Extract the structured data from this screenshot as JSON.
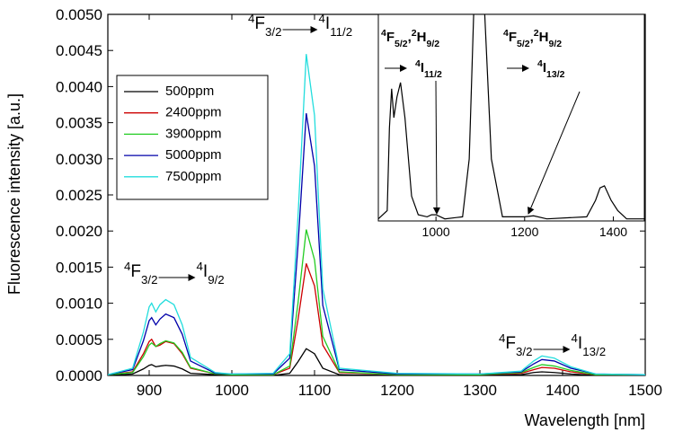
{
  "chart_data": {
    "type": "line",
    "xlabel": "Wavelength [nm]",
    "ylabel": "Fluorescence intensity [a.u.]",
    "xlim": [
      850,
      1500
    ],
    "xticks": [
      900,
      1000,
      1100,
      1200,
      1300,
      1400,
      1500
    ],
    "ylim": [
      0,
      0.005
    ],
    "yticks": [
      {
        "value": 0,
        "label": "0.0000"
      },
      {
        "value": 0.0005,
        "label": "0.0005"
      },
      {
        "value": 0.001,
        "label": "0.0010"
      },
      {
        "value": 0.0015,
        "label": "0.0015"
      },
      {
        "value": 0.002,
        "label": "0.0020"
      },
      {
        "value": 0.0025,
        "label": "0.0025"
      },
      {
        "value": 0.003,
        "label": "0.0030"
      },
      {
        "value": 0.0035,
        "label": "0.0035"
      },
      {
        "value": 0.004,
        "label": "0.0040"
      },
      {
        "value": 0.0045,
        "label": "0.0045"
      },
      {
        "value": 0.005,
        "label": "0.0050"
      }
    ],
    "legend": "upper left",
    "x": [
      850,
      880,
      893,
      900,
      903,
      908,
      913,
      920,
      930,
      940,
      950,
      980,
      1000,
      1050,
      1070,
      1080,
      1090,
      1100,
      1110,
      1130,
      1200,
      1300,
      1350,
      1365,
      1375,
      1390,
      1410,
      1440,
      1500
    ],
    "series": [
      {
        "name": "500ppm",
        "color": "#000000",
        "values": [
          0,
          2e-05,
          9e-05,
          0.00014,
          0.00015,
          0.00012,
          0.00013,
          0.00014,
          0.00013,
          9e-05,
          3e-05,
          1e-05,
          0,
          0,
          3e-05,
          0.00019,
          0.00037,
          0.0003,
          0.0001,
          1e-05,
          0,
          0,
          1e-05,
          4e-05,
          5e-05,
          4e-05,
          2e-05,
          0,
          0
        ]
      },
      {
        "name": "2400ppm",
        "color": "#cc0000",
        "values": [
          1e-05,
          5e-05,
          0.0003,
          0.00047,
          0.0005,
          0.0004,
          0.00042,
          0.00047,
          0.00044,
          0.0003,
          0.0001,
          2e-05,
          1e-05,
          1e-05,
          0.0001,
          0.00077,
          0.00155,
          0.00124,
          0.00042,
          4e-05,
          1e-05,
          1e-05,
          3e-05,
          8e-05,
          0.00011,
          0.0001,
          5e-05,
          1e-05,
          1e-05
        ]
      },
      {
        "name": "3900ppm",
        "color": "#22cc22",
        "values": [
          1e-05,
          4e-05,
          0.00026,
          0.00042,
          0.00045,
          0.0004,
          0.00044,
          0.00048,
          0.00045,
          0.00032,
          0.00011,
          2e-05,
          1e-05,
          1e-05,
          0.00013,
          0.001,
          0.00202,
          0.0016,
          0.00054,
          5e-05,
          1e-05,
          1e-05,
          4e-05,
          0.00011,
          0.00015,
          0.00013,
          7e-05,
          1e-05,
          1e-05
        ]
      },
      {
        "name": "5000ppm",
        "color": "#0000aa",
        "values": [
          1e-05,
          8e-05,
          0.00048,
          0.00076,
          0.0008,
          0.0007,
          0.00078,
          0.00085,
          0.0008,
          0.00057,
          0.0002,
          3e-05,
          2e-05,
          2e-05,
          0.00024,
          0.0018,
          0.00363,
          0.0029,
          0.00097,
          8e-05,
          2e-05,
          2e-05,
          5e-05,
          0.00016,
          0.00022,
          0.0002,
          0.0001,
          2e-05,
          1e-05
        ]
      },
      {
        "name": "7500ppm",
        "color": "#22dddd",
        "values": [
          1e-05,
          0.0001,
          0.0006,
          0.00095,
          0.001,
          0.00088,
          0.00098,
          0.00105,
          0.00098,
          0.0007,
          0.00025,
          4e-05,
          2e-05,
          3e-05,
          0.0003,
          0.0022,
          0.00445,
          0.0036,
          0.0012,
          0.0001,
          3e-05,
          2e-05,
          6e-05,
          0.0002,
          0.00027,
          0.00024,
          0.00012,
          2e-05,
          1e-05
        ]
      }
    ],
    "annotations": [
      {
        "from": [
          {
            "sup": "4",
            "sym": "F",
            "sub": "3/2"
          }
        ],
        "to": [
          {
            "sup": "4",
            "sym": "I",
            "sub": "9/2"
          }
        ]
      },
      {
        "from": [
          {
            "sup": "4",
            "sym": "F",
            "sub": "3/2"
          }
        ],
        "to": [
          {
            "sup": "4",
            "sym": "I",
            "sub": "11/2"
          }
        ]
      },
      {
        "from": [
          {
            "sup": "4",
            "sym": "F",
            "sub": "3/2"
          }
        ],
        "to": [
          {
            "sup": "4",
            "sym": "I",
            "sub": "13/2"
          }
        ]
      }
    ],
    "inset": {
      "xlim": [
        870,
        1470
      ],
      "xticks": [
        1000,
        1200,
        1400
      ],
      "ylim": [
        0,
        1
      ],
      "color": "#000000",
      "x": [
        870,
        890,
        895,
        900,
        905,
        912,
        920,
        930,
        945,
        960,
        980,
        990,
        1000,
        1020,
        1060,
        1075,
        1085,
        1090,
        1100,
        1110,
        1125,
        1150,
        1200,
        1220,
        1250,
        1340,
        1360,
        1370,
        1380,
        1395,
        1410,
        1430,
        1470
      ],
      "values": [
        0.01,
        0.05,
        0.45,
        0.64,
        0.5,
        0.6,
        0.67,
        0.5,
        0.12,
        0.03,
        0.02,
        0.03,
        0.03,
        0.01,
        0.02,
        0.3,
        1.0,
        1.5,
        1.5,
        1.0,
        0.3,
        0.02,
        0.02,
        0.025,
        0.01,
        0.02,
        0.1,
        0.16,
        0.17,
        0.1,
        0.05,
        0.01,
        0.01
      ],
      "annotations": [
        {
          "from": [
            {
              "sup": "4",
              "sym": "F",
              "sub": "5/2"
            },
            {
              "sup": "2",
              "sym": "H",
              "sub": "9/2"
            }
          ],
          "sep": ",",
          "to": [
            {
              "sup": "4",
              "sym": "I",
              "sub": "11/2"
            }
          ]
        },
        {
          "from": [
            {
              "sup": "4",
              "sym": "F",
              "sub": "5/2"
            },
            {
              "sup": "2",
              "sym": "H",
              "sub": "9/2"
            }
          ],
          "sep": ",",
          "to": [
            {
              "sup": "4",
              "sym": "I",
              "sub": "13/2"
            }
          ]
        }
      ]
    }
  }
}
